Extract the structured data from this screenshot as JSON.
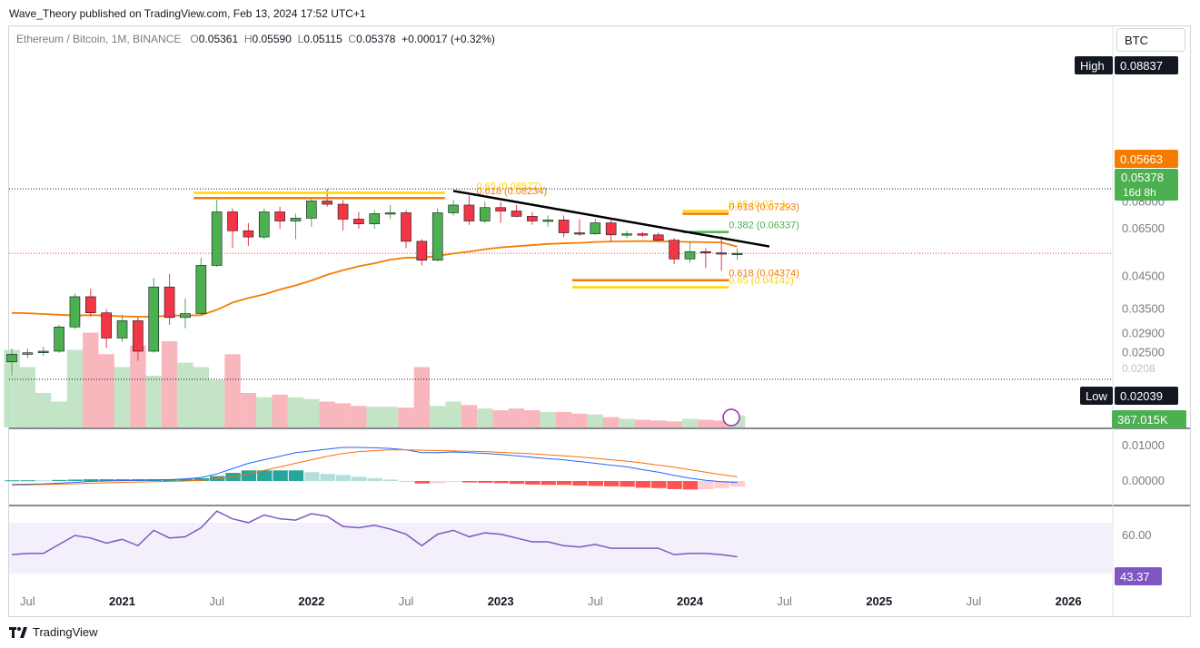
{
  "header": {
    "published": "Wave_Theory published on TradingView.com, Feb 13, 2024 17:52 UTC+1"
  },
  "legend": {
    "symbol": "Ethereum / Bitcoin, 1M, BINANCE",
    "o_label": "O",
    "o": "0.05361",
    "h_label": "H",
    "h": "0.05590",
    "l_label": "L",
    "l": "0.05115",
    "c_label": "C",
    "c": "0.05378",
    "change": "+0.00017 (+0.32%)"
  },
  "currency_button": "BTC",
  "footer": {
    "brand": "TradingView",
    "logo": "tv-logo-icon"
  },
  "colors": {
    "up": "#4caf50",
    "down": "#f23645",
    "ema": "#f57c00",
    "trend": "#000000",
    "fib_orange": "#f57c00",
    "fib_yellow": "#ffd600",
    "fib_green": "#4caf50",
    "macd": "#2962ff",
    "signal": "#ff6d00",
    "rsi": "#7e57c2",
    "rsi_band": "#f3f0fb"
  },
  "chart_data": {
    "type": "candlestick",
    "interval": "1M",
    "price_scale": "log",
    "price_axis_ticks": [
      "0.08000",
      "0.06500",
      "0.04500",
      "0.03500",
      "0.02900",
      "0.02500"
    ],
    "time_axis_ticks": [
      "Jul",
      "2021",
      "Jul",
      "2022",
      "Jul",
      "2023",
      "Jul",
      "2024",
      "Jul",
      "2025",
      "Jul",
      "2026"
    ],
    "candles": [
      {
        "o": 0.0233,
        "h": 0.0258,
        "l": 0.021,
        "c": 0.0247
      },
      {
        "o": 0.0247,
        "h": 0.0258,
        "l": 0.024,
        "c": 0.025
      },
      {
        "o": 0.025,
        "h": 0.0262,
        "l": 0.0244,
        "c": 0.0253
      },
      {
        "o": 0.0253,
        "h": 0.031,
        "l": 0.025,
        "c": 0.0305
      },
      {
        "o": 0.0305,
        "h": 0.0395,
        "l": 0.03,
        "c": 0.0385
      },
      {
        "o": 0.0385,
        "h": 0.041,
        "l": 0.033,
        "c": 0.034
      },
      {
        "o": 0.034,
        "h": 0.035,
        "l": 0.026,
        "c": 0.028
      },
      {
        "o": 0.028,
        "h": 0.0335,
        "l": 0.0272,
        "c": 0.032
      },
      {
        "o": 0.032,
        "h": 0.033,
        "l": 0.0235,
        "c": 0.0253
      },
      {
        "o": 0.0253,
        "h": 0.0445,
        "l": 0.025,
        "c": 0.0415
      },
      {
        "o": 0.0415,
        "h": 0.046,
        "l": 0.031,
        "c": 0.0328
      },
      {
        "o": 0.0328,
        "h": 0.038,
        "l": 0.0302,
        "c": 0.0338
      },
      {
        "o": 0.0338,
        "h": 0.052,
        "l": 0.0335,
        "c": 0.049
      },
      {
        "o": 0.049,
        "h": 0.0812,
        "l": 0.0485,
        "c": 0.074
      },
      {
        "o": 0.074,
        "h": 0.076,
        "l": 0.056,
        "c": 0.064
      },
      {
        "o": 0.064,
        "h": 0.068,
        "l": 0.057,
        "c": 0.061
      },
      {
        "o": 0.061,
        "h": 0.076,
        "l": 0.06,
        "c": 0.074
      },
      {
        "o": 0.074,
        "h": 0.077,
        "l": 0.065,
        "c": 0.069
      },
      {
        "o": 0.069,
        "h": 0.073,
        "l": 0.06,
        "c": 0.0705
      },
      {
        "o": 0.0705,
        "h": 0.083,
        "l": 0.066,
        "c": 0.0805
      },
      {
        "o": 0.0805,
        "h": 0.0884,
        "l": 0.077,
        "c": 0.0785
      },
      {
        "o": 0.0785,
        "h": 0.081,
        "l": 0.064,
        "c": 0.07
      },
      {
        "o": 0.07,
        "h": 0.074,
        "l": 0.065,
        "c": 0.0675
      },
      {
        "o": 0.0675,
        "h": 0.075,
        "l": 0.065,
        "c": 0.073
      },
      {
        "o": 0.073,
        "h": 0.078,
        "l": 0.07,
        "c": 0.0735
      },
      {
        "o": 0.0735,
        "h": 0.075,
        "l": 0.056,
        "c": 0.059
      },
      {
        "o": 0.059,
        "h": 0.06,
        "l": 0.049,
        "c": 0.051
      },
      {
        "o": 0.051,
        "h": 0.076,
        "l": 0.0505,
        "c": 0.0735
      },
      {
        "o": 0.0735,
        "h": 0.081,
        "l": 0.072,
        "c": 0.078
      },
      {
        "o": 0.078,
        "h": 0.084,
        "l": 0.067,
        "c": 0.069
      },
      {
        "o": 0.069,
        "h": 0.08,
        "l": 0.068,
        "c": 0.0765
      },
      {
        "o": 0.0765,
        "h": 0.08,
        "l": 0.068,
        "c": 0.0745
      },
      {
        "o": 0.0745,
        "h": 0.078,
        "l": 0.071,
        "c": 0.0715
      },
      {
        "o": 0.0715,
        "h": 0.074,
        "l": 0.067,
        "c": 0.069
      },
      {
        "o": 0.069,
        "h": 0.072,
        "l": 0.066,
        "c": 0.0695
      },
      {
        "o": 0.0695,
        "h": 0.072,
        "l": 0.061,
        "c": 0.063
      },
      {
        "o": 0.063,
        "h": 0.07,
        "l": 0.0615,
        "c": 0.0625
      },
      {
        "o": 0.0625,
        "h": 0.07,
        "l": 0.062,
        "c": 0.068
      },
      {
        "o": 0.068,
        "h": 0.07,
        "l": 0.059,
        "c": 0.062
      },
      {
        "o": 0.062,
        "h": 0.064,
        "l": 0.0605,
        "c": 0.0625
      },
      {
        "o": 0.0625,
        "h": 0.0635,
        "l": 0.061,
        "c": 0.062
      },
      {
        "o": 0.062,
        "h": 0.063,
        "l": 0.06,
        "c": 0.0595
      },
      {
        "o": 0.0595,
        "h": 0.0605,
        "l": 0.0495,
        "c": 0.0515
      },
      {
        "o": 0.0515,
        "h": 0.059,
        "l": 0.05,
        "c": 0.0545
      },
      {
        "o": 0.0545,
        "h": 0.056,
        "l": 0.048,
        "c": 0.054
      },
      {
        "o": 0.054,
        "h": 0.0615,
        "l": 0.047,
        "c": 0.0536
      },
      {
        "o": 0.0536,
        "h": 0.0559,
        "l": 0.05115,
        "c": 0.05378
      }
    ],
    "ema": [
      0.034,
      0.0339,
      0.0337,
      0.0335,
      0.0333,
      0.0334,
      0.0333,
      0.0331,
      0.033,
      0.033,
      0.0333,
      0.0333,
      0.0334,
      0.0348,
      0.0368,
      0.0381,
      0.0392,
      0.0407,
      0.042,
      0.0436,
      0.0456,
      0.0472,
      0.0487,
      0.0498,
      0.0512,
      0.052,
      0.052,
      0.0527,
      0.0537,
      0.0545,
      0.0555,
      0.0563,
      0.0568,
      0.0573,
      0.0578,
      0.0581,
      0.0583,
      0.0587,
      0.0589,
      0.059,
      0.0591,
      0.059,
      0.0589,
      0.0587,
      0.0586,
      0.0585,
      0.05663
    ],
    "volume": [
      90,
      70,
      40,
      30,
      90,
      110,
      85,
      70,
      95,
      60,
      100,
      75,
      70,
      55,
      85,
      40,
      35,
      38,
      35,
      33,
      30,
      28,
      25,
      24,
      24,
      23,
      70,
      25,
      30,
      26,
      22,
      20,
      22,
      20,
      18,
      18,
      16,
      15,
      12,
      10,
      9,
      8,
      7,
      10,
      9,
      8,
      14
    ],
    "macd": [
      -0.001,
      -0.0009,
      -0.0008,
      -0.0006,
      -0.0004,
      -0.0001,
      0.0,
      0.0001,
      0.0002,
      0.0003,
      0.0004,
      0.0006,
      0.001,
      0.002,
      0.0035,
      0.005,
      0.006,
      0.007,
      0.008,
      0.0085,
      0.009,
      0.0095,
      0.0095,
      0.0094,
      0.0092,
      0.0088,
      0.008,
      0.008,
      0.0082,
      0.008,
      0.0078,
      0.0075,
      0.0071,
      0.0067,
      0.0063,
      0.006,
      0.0055,
      0.005,
      0.0045,
      0.004,
      0.0032,
      0.0025,
      0.0016,
      0.0008,
      0.0002,
      -0.0002,
      -0.0004
    ],
    "signal": [
      -0.0012,
      -0.0011,
      -0.001,
      -0.0009,
      -0.0008,
      -0.0006,
      -0.0005,
      -0.0004,
      -0.0003,
      -0.0002,
      -0.0001,
      0.0,
      0.0002,
      0.0006,
      0.0012,
      0.002,
      0.003,
      0.004,
      0.005,
      0.006,
      0.007,
      0.0078,
      0.0083,
      0.0086,
      0.0088,
      0.0088,
      0.0087,
      0.0086,
      0.0085,
      0.0084,
      0.0083,
      0.0081,
      0.0079,
      0.0077,
      0.0074,
      0.0071,
      0.0068,
      0.0064,
      0.006,
      0.0056,
      0.0051,
      0.0045,
      0.0039,
      0.0032,
      0.0025,
      0.0018,
      0.0012
    ],
    "macd_axis_ticks": [
      "0.01000",
      "0.00000"
    ],
    "rsi": [
      45,
      46,
      46,
      53,
      60,
      58,
      54,
      57,
      52,
      64,
      58,
      59,
      66,
      79,
      73,
      70,
      76,
      73,
      72,
      77,
      75,
      67,
      66,
      68,
      65,
      61,
      52,
      61,
      64,
      59,
      62,
      61,
      58,
      55,
      55,
      52,
      51,
      53,
      50,
      50,
      50,
      50,
      45,
      46,
      46,
      45,
      43.37
    ],
    "rsi_axis_ticks": [
      "60.00"
    ],
    "trendline": {
      "from_index": 28,
      "from_price": 0.087,
      "to_index": 47,
      "to_price": 0.0575
    },
    "fib_levels": [
      {
        "label": "0.65 (0.08577)",
        "price": 0.08577,
        "color": "#ffd600",
        "from": 12,
        "to": 27,
        "label_index": 29
      },
      {
        "label": "0.618 (0.08234)",
        "price": 0.08234,
        "color": "#f57c00",
        "from": 12,
        "to": 27,
        "label_index": 29
      },
      {
        "label": "0.65 (0.07...)",
        "price": 0.0745,
        "color": "#ffd600",
        "from": 43,
        "to": 45,
        "label_index": 45
      },
      {
        "label": "0.618 (0.07293)",
        "price": 0.07293,
        "color": "#f57c00",
        "from": 43,
        "to": 45,
        "label_index": 45
      },
      {
        "label": "0.382 (0.06337)",
        "price": 0.06337,
        "color": "#4caf50",
        "from": 43,
        "to": 45,
        "label_index": 45
      },
      {
        "label": "0.618 (0.04374)",
        "price": 0.04374,
        "color": "#f57c00",
        "from": 36,
        "to": 45,
        "label_index": 45
      },
      {
        "label": "0.65 (0.04142)",
        "price": 0.04142,
        "color": "#ffd600",
        "from": 36,
        "to": 45,
        "label_index": 45
      }
    ],
    "high": {
      "label": "High",
      "value": "0.08837",
      "price": 0.08837
    },
    "low": {
      "label": "Low",
      "value": "0.02039",
      "price": 0.02039
    },
    "ema_label": "0.05663",
    "last_price": {
      "value": "0.05378",
      "countdown": "16d 8h",
      "price": 0.05378
    },
    "volume_label": "367.015K",
    "rsi_label": "43.37",
    "low_tick_partial": "0.0208"
  }
}
